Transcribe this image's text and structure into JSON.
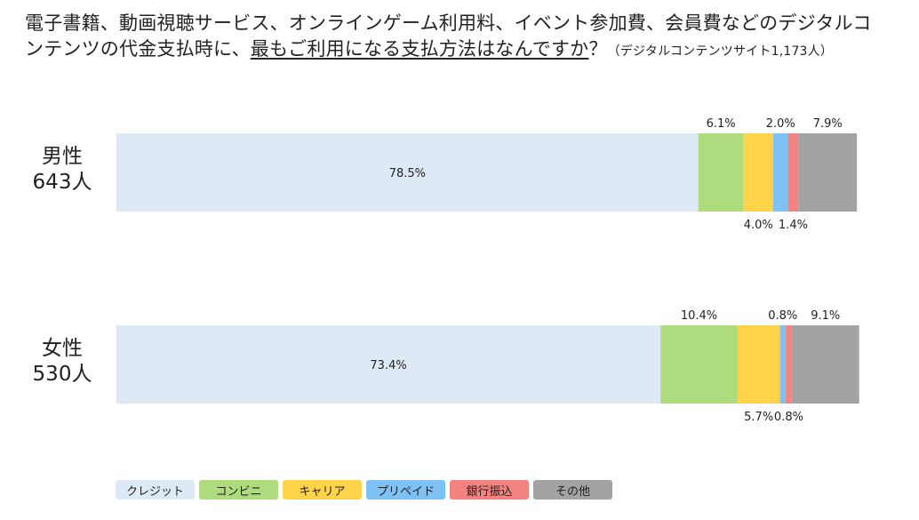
{
  "title": {
    "line1": "電子書籍、動画視聴サービス、オンラインゲーム利用料、イベント参加費、会員費などのデジタルコ",
    "line2_pre": "ンテンツの代金支払時に、",
    "line2_underline": "最もご利用になる支払方法はなんですか",
    "line2_q": "？",
    "note": "（デジタルコンテンツサイト1,173人）"
  },
  "chart_data": {
    "type": "bar",
    "orientation": "horizontal-stacked-100",
    "categories": [
      "男性\n643人",
      "女性\n530人"
    ],
    "series": [
      {
        "name": "クレジット",
        "color": "#ddeaf6",
        "values": [
          78.5,
          73.4
        ],
        "labels": [
          "78.5%",
          "73.4%"
        ]
      },
      {
        "name": "コンビニ",
        "color": "#aedb7d",
        "values": [
          6.1,
          10.4
        ],
        "labels": [
          "6.1%",
          "10.4%"
        ]
      },
      {
        "name": "キャリア",
        "color": "#ffd34a",
        "values": [
          4.0,
          5.7
        ],
        "labels": [
          "4.0%",
          "5.7%"
        ]
      },
      {
        "name": "プリペイド",
        "color": "#7dc1f5",
        "values": [
          2.0,
          0.8
        ],
        "labels": [
          "2.0%",
          "0.8%"
        ]
      },
      {
        "name": "銀行振込",
        "color": "#f4837f",
        "values": [
          1.4,
          0.8
        ],
        "labels": [
          "1.4%",
          "0.8%"
        ]
      },
      {
        "name": "その他",
        "color": "#a3a3a3",
        "values": [
          7.9,
          9.1
        ],
        "labels": [
          "7.9%",
          "9.1%"
        ]
      }
    ],
    "xlim": [
      0,
      100
    ],
    "legend": "bottom"
  }
}
